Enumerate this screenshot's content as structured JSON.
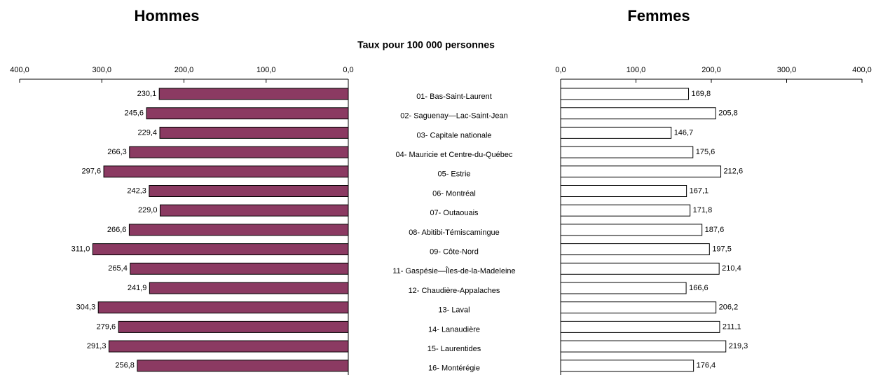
{
  "chart_data": {
    "type": "butterfly-bar",
    "subtitle": "Taux pour 100 000 personnes",
    "categories": [
      "01- Bas-Saint-Laurent",
      "02- Saguenay—Lac-Saint-Jean",
      "03- Capitale nationale",
      "04- Mauricie et Centre-du-Québec",
      "05- Estrie",
      "06- Montréal",
      "07- Outaouais",
      "08- Abitibi-Témiscamingue",
      "09- Côte-Nord",
      "11- Gaspésie—Îles-de-la-Madeleine",
      "12- Chaudière-Appalaches",
      "13- Laval",
      "14- Lanaudière",
      "15- Laurentides",
      "16- Montérégie"
    ],
    "series": [
      {
        "name": "Hommes",
        "color": "#8b3a62",
        "values": [
          230.1,
          245.6,
          229.4,
          266.3,
          297.6,
          242.3,
          229.0,
          266.6,
          311.0,
          265.4,
          241.9,
          304.3,
          279.6,
          291.3,
          256.8
        ],
        "value_labels": [
          "230,1",
          "245,6",
          "229,4",
          "266,3",
          "297,6",
          "242,3",
          "229,0",
          "266,6",
          "311,0",
          "265,4",
          "241,9",
          "304,3",
          "279,6",
          "291,3",
          "256,8"
        ]
      },
      {
        "name": "Femmes",
        "color": "#ffffff",
        "values": [
          169.8,
          205.8,
          146.7,
          175.6,
          212.6,
          167.1,
          171.8,
          187.6,
          197.5,
          210.4,
          166.6,
          206.2,
          211.1,
          219.3,
          176.4
        ],
        "value_labels": [
          "169,8",
          "205,8",
          "146,7",
          "175,6",
          "212,6",
          "167,1",
          "171,8",
          "187,6",
          "197,5",
          "210,4",
          "166,6",
          "206,2",
          "211,1",
          "219,3",
          "176,4"
        ]
      }
    ],
    "xlim": [
      0,
      400
    ],
    "xticks": [
      {
        "value": 0,
        "label": "0,0"
      },
      {
        "value": 100,
        "label": "100,0"
      },
      {
        "value": 200,
        "label": "200,0"
      },
      {
        "value": 300,
        "label": "300,0"
      },
      {
        "value": 400,
        "label": "400,0"
      }
    ]
  }
}
